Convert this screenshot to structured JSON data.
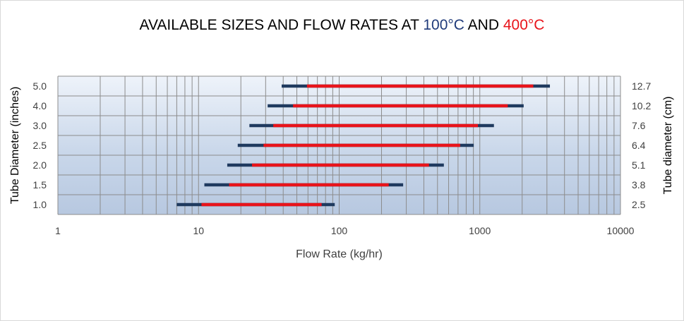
{
  "title": {
    "prefix": "AVAILABLE SIZES AND FLOW RATES AT ",
    "temp1": "100°C",
    "middle": " AND ",
    "temp2": "400°C"
  },
  "chart_data": {
    "type": "range-bar",
    "title": "AVAILABLE SIZES AND FLOW RATES AT 100°C AND 400°C",
    "xlabel": "Flow Rate (kg/hr)",
    "ylabel_left": "Tube Diameter (inches)",
    "ylabel_right": "Tube diameter (cm)",
    "x_scale": "log",
    "xlim": [
      1,
      10000
    ],
    "x_ticks": [
      "1",
      "10",
      "100",
      "1000",
      "10000"
    ],
    "categories_left": [
      "1.0",
      "1.5",
      "2.0",
      "2.5",
      "3.0",
      "4.0",
      "5.0"
    ],
    "categories_right": [
      "2.5",
      "3.8",
      "5.1",
      "6.4",
      "7.6",
      "10.2",
      "12.7"
    ],
    "grid": true,
    "series": [
      {
        "name": "100°C",
        "color": "#1f3a5f",
        "ranges": [
          [
            7,
            93
          ],
          [
            11,
            285
          ],
          [
            16,
            555
          ],
          [
            19,
            905
          ],
          [
            23,
            1260
          ],
          [
            31,
            2050
          ],
          [
            39,
            3150
          ]
        ]
      },
      {
        "name": "400°C",
        "color": "#e8141b",
        "ranges": [
          [
            10.5,
            75
          ],
          [
            16.5,
            225
          ],
          [
            24,
            435
          ],
          [
            29,
            725
          ],
          [
            34,
            970
          ],
          [
            47,
            1580
          ],
          [
            59,
            2400
          ]
        ]
      }
    ]
  }
}
